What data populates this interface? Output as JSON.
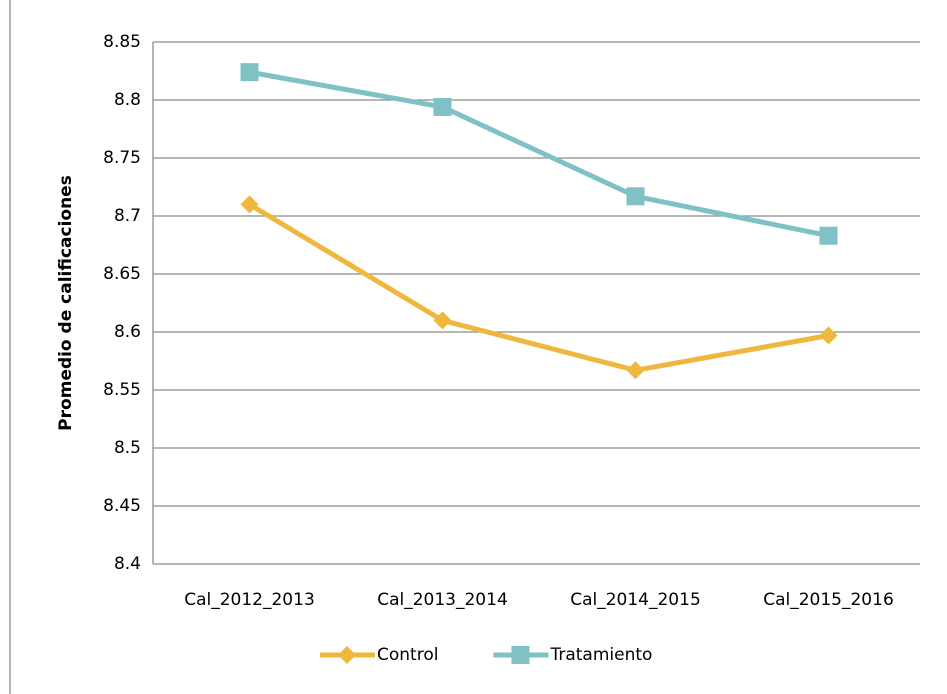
{
  "chart_data": {
    "type": "line",
    "y_label": "Promedio de calificaciones",
    "categories": [
      "Cal_2012_2013",
      "Cal_2013_2014",
      "Cal_2014_2015",
      "Cal_2015_2016"
    ],
    "series": [
      {
        "name": "Control",
        "color": "#efb73e",
        "marker": "diamond",
        "values": [
          8.71,
          8.61,
          8.567,
          8.597
        ]
      },
      {
        "name": "Tratamiento",
        "color": "#7fc1c4",
        "marker": "square",
        "values": [
          8.824,
          8.794,
          8.717,
          8.683
        ]
      }
    ],
    "ylim": [
      8.4,
      8.85
    ],
    "yticks": [
      8.4,
      8.45,
      8.5,
      8.55,
      8.6,
      8.65,
      8.7,
      8.75,
      8.8,
      8.85
    ],
    "grid": true,
    "legend": "bottom"
  }
}
